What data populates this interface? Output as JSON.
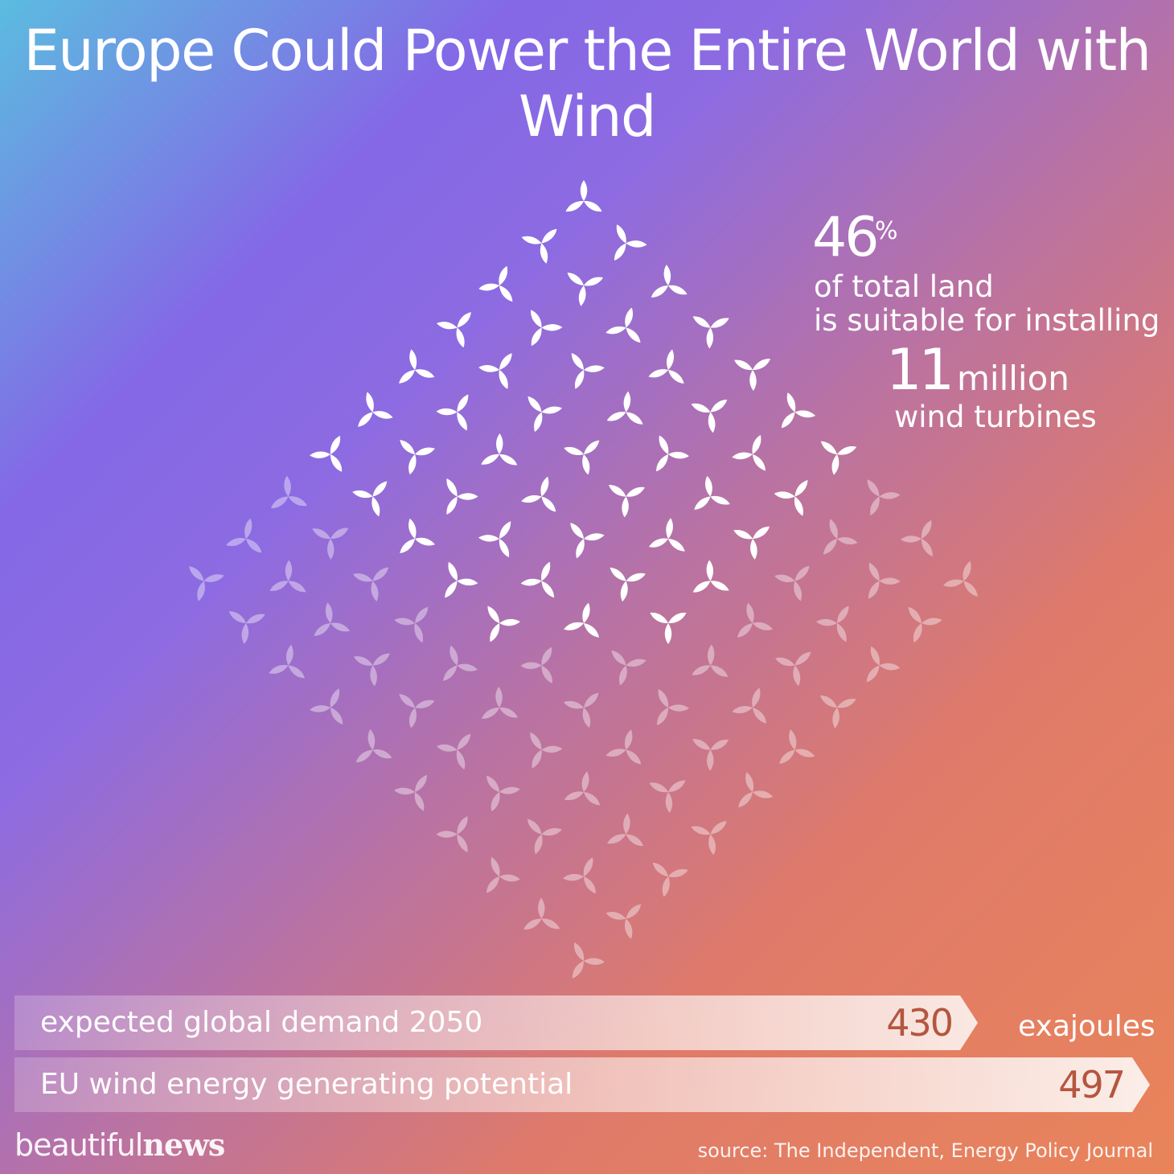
{
  "title": "Europe Could Power the Entire World with Wind",
  "stats": {
    "land_percent": "46",
    "percent_symbol": "%",
    "land_text_line1": "of total land",
    "land_text_line2": "is suitable for installing",
    "turbine_count": "11",
    "turbine_unit": "million",
    "turbine_label": "wind turbines"
  },
  "unit_label": "exajoules",
  "brand": {
    "light": "beautiful",
    "bold": "news"
  },
  "source": "source: The Independent, Energy Policy Journal",
  "colors": {
    "value_text": "#b5563f",
    "turbine_highlight": "#ffffff",
    "turbine_faded": "rgba(255,255,255,0.4)"
  },
  "icon": "wind-turbine-icon",
  "chart_data": [
    {
      "type": "bar",
      "categories": [
        "expected global demand 2050",
        "EU wind energy generating potential"
      ],
      "values": [
        430,
        497
      ],
      "ylabel": "exajoules"
    },
    {
      "type": "table",
      "percent_suitable_land": 46,
      "highlighted_turbine_icons": 46,
      "total_turbine_icons": 100
    }
  ]
}
